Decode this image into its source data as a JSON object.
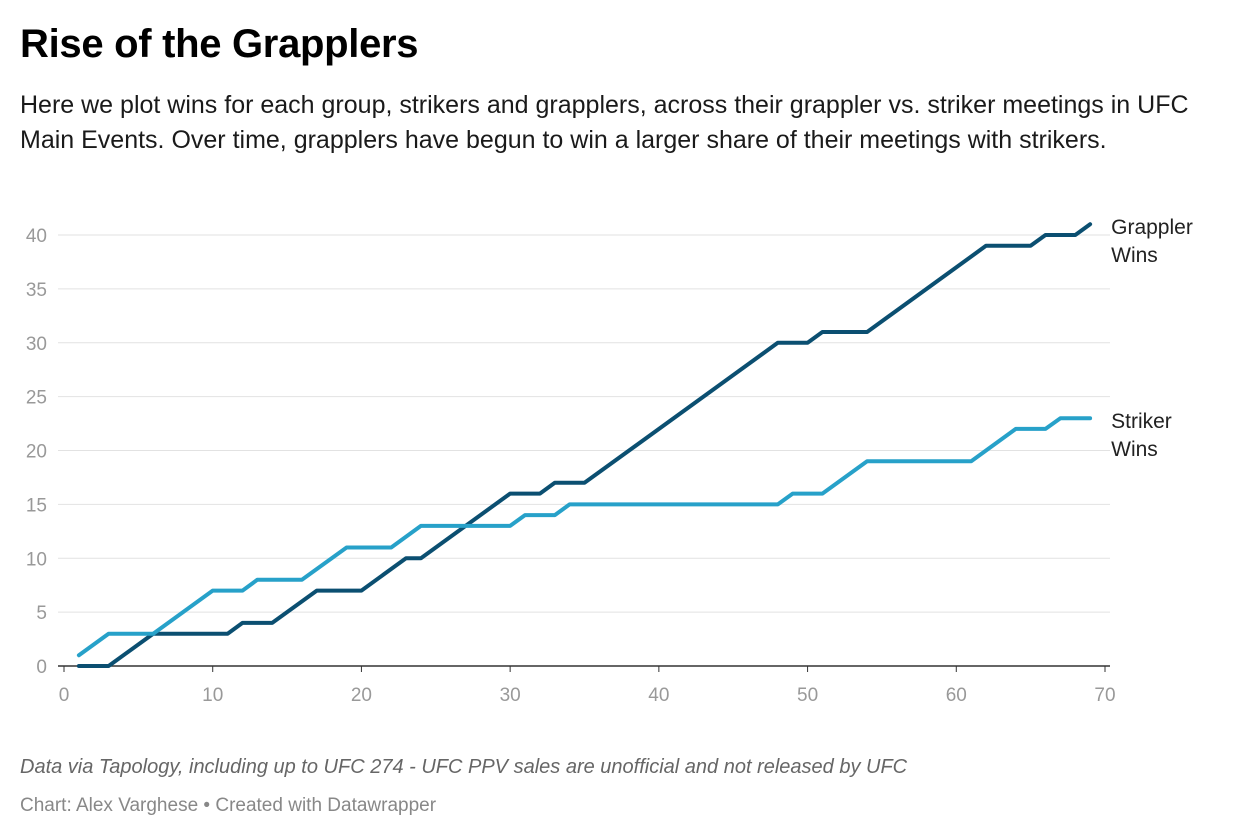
{
  "header": {
    "title": "Rise of the Grapplers",
    "subtitle": "Here we plot wins for each group, strikers and grapplers, across their grappler vs. striker meetings in UFC Main Events. Over time, grapplers have begun to win a larger share of their meetings with strikers."
  },
  "footer": {
    "note": "Data via Tapology, including up to UFC 274 - UFC PPV sales are unofficial and not released by UFC",
    "byline": "Chart: Alex Varghese • Created with Datawrapper"
  },
  "chart_data": {
    "type": "line",
    "title": "Rise of the Grapplers",
    "xlabel": "",
    "ylabel": "",
    "xlim": [
      0,
      70
    ],
    "ylim": [
      0,
      40
    ],
    "x_ticks": [
      0,
      10,
      20,
      30,
      40,
      50,
      60,
      70
    ],
    "y_ticks": [
      0,
      5,
      10,
      15,
      20,
      25,
      30,
      35,
      40
    ],
    "grid": "horizontal",
    "legend": "direct labels at line ends",
    "series": [
      {
        "name": "Grappler Wins",
        "label_lines": [
          "Grappler",
          "Wins"
        ],
        "color": "#0b4f71",
        "x": [
          1,
          3,
          6,
          11,
          12,
          14,
          17,
          20,
          23,
          24,
          30,
          32,
          33,
          35,
          48,
          50,
          51,
          54,
          62,
          65,
          66,
          68,
          69
        ],
        "y": [
          0,
          0,
          3,
          3,
          4,
          4,
          7,
          7,
          10,
          10,
          16,
          16,
          17,
          17,
          30,
          30,
          31,
          31,
          39,
          39,
          40,
          40,
          41
        ]
      },
      {
        "name": "Striker Wins",
        "label_lines": [
          "Striker",
          "Wins"
        ],
        "color": "#27a1c9",
        "x": [
          1,
          3,
          6,
          10,
          12,
          13,
          16,
          19,
          22,
          24,
          30,
          31,
          33,
          34,
          48,
          49,
          51,
          54,
          61,
          64,
          66,
          67,
          69
        ],
        "y": [
          1,
          3,
          3,
          7,
          7,
          8,
          8,
          11,
          11,
          13,
          13,
          14,
          14,
          15,
          15,
          16,
          16,
          19,
          19,
          22,
          22,
          23,
          23
        ]
      }
    ]
  }
}
